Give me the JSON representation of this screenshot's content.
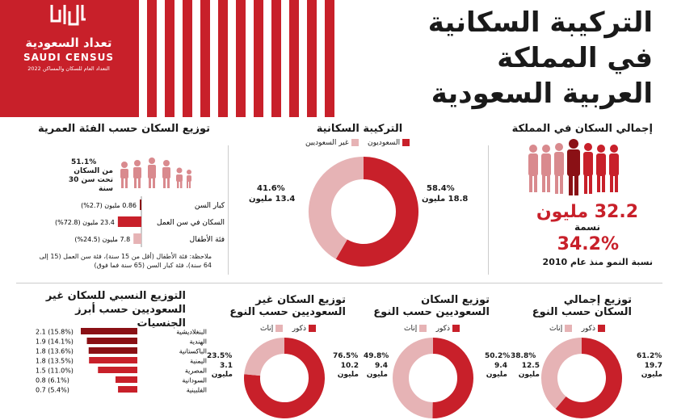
{
  "header": {
    "logo_ar": "تعداد السعودية",
    "logo_en": "SAUDI CENSUS",
    "logo_sub": "التعداد العام للسكان والمساكن 2022",
    "title_lines": [
      "التركيبة السكانية",
      "في المملكة",
      "العربية السعودية"
    ]
  },
  "total": {
    "title": "إجمالي السكان في المملكة",
    "population_value": "32.2 مليون",
    "population_label": "نسمة",
    "growth_value": "34.2%",
    "growth_label": "نسبة النمو منذ عام 2010"
  },
  "composition": {
    "title": "التركيبة السكانية",
    "legend": [
      "السعوديون",
      "غير السعوديين"
    ],
    "saudi_pct": "58.4%",
    "saudi_abs": "18.8 مليون",
    "non_saudi_pct": "41.6%",
    "non_saudi_abs": "13.4 مليون"
  },
  "age": {
    "title": "توزيع السكان حسب الفئة العمرية",
    "under30_pct": "51.1%",
    "under30_label": "من السكان تحت سن 30 سنة",
    "note": "ملاحظة: فئة الأطفال (أقل من 15 سنة)، فئة سن العمل (15 إلى 64 سنة)، فئة كبار السن (65 سنة فما فوق)"
  },
  "gender_total": {
    "title": "توزيع إجمالي السكان حسب النوع",
    "legend": [
      "ذكور",
      "إناث"
    ],
    "male_pct": "61.2%",
    "male_abs": "19.7 مليون",
    "female_pct": "38.8%",
    "female_abs": "12.5 مليون"
  },
  "gender_saudi": {
    "title": "توزيع السكان السعوديين حسب النوع",
    "legend": [
      "ذكور",
      "إناث"
    ],
    "male_pct": "50.2%",
    "male_abs": "9.4 مليون",
    "female_pct": "49.8%",
    "female_abs": "9.4 مليون"
  },
  "gender_non_saudi": {
    "title": "توزيع السكان غير السعوديين حسب النوع",
    "legend": [
      "ذكور",
      "إناث"
    ],
    "male_pct": "76.5%",
    "male_abs": "10.2 مليون",
    "female_pct": "23.5%",
    "female_abs": "3.1 مليون"
  },
  "nationalities": {
    "title": "التوزيع النسبي للسكان غير السعوديين حسب أبرز الجنسيات"
  },
  "chart_data": [
    {
      "type": "pie",
      "title": "التركيبة السكانية",
      "categories": [
        "السعوديون",
        "غير السعوديين"
      ],
      "values": [
        58.4,
        41.6
      ],
      "absolute_millions": [
        18.8,
        13.4
      ],
      "colors": [
        "#c8202a",
        "#e6b3b5"
      ]
    },
    {
      "type": "bar",
      "title": "توزيع السكان حسب الفئة العمرية",
      "categories": [
        "كبار السن",
        "السكان في سن العمل",
        "فئة الأطفال"
      ],
      "values": [
        2.7,
        72.8,
        24.5
      ],
      "absolute_millions": [
        0.86,
        23.4,
        7.8
      ],
      "value_labels": [
        "0.86 مليون (2.7%)",
        "23.4 مليون (72.8%)",
        "7.8 مليون (24.5%)"
      ]
    },
    {
      "type": "pie",
      "title": "توزيع إجمالي السكان حسب النوع",
      "categories": [
        "ذكور",
        "إناث"
      ],
      "values": [
        61.2,
        38.8
      ],
      "absolute_millions": [
        19.7,
        12.5
      ]
    },
    {
      "type": "pie",
      "title": "توزيع السكان السعوديين حسب النوع",
      "categories": [
        "ذكور",
        "إناث"
      ],
      "values": [
        50.2,
        49.8
      ],
      "absolute_millions": [
        9.4,
        9.4
      ]
    },
    {
      "type": "pie",
      "title": "توزيع السكان غير السعوديين حسب النوع",
      "categories": [
        "ذكور",
        "إناث"
      ],
      "values": [
        76.5,
        23.5
      ],
      "absolute_millions": [
        10.2,
        3.1
      ]
    },
    {
      "type": "bar",
      "title": "التوزيع النسبي للسكان غير السعوديين حسب أبرز الجنسيات",
      "categories": [
        "البنغلاديشية",
        "الهندية",
        "الباكستانية",
        "اليمنية",
        "المصرية",
        "السودانية",
        "الفلبينية"
      ],
      "values": [
        15.8,
        14.1,
        13.6,
        13.5,
        11.0,
        6.1,
        5.4
      ],
      "absolute_millions": [
        2.1,
        1.9,
        1.8,
        1.8,
        1.5,
        0.8,
        0.7
      ],
      "value_labels": [
        "2.1 (15.8%)",
        "1.9 (14.1%)",
        "1.8 (13.6%)",
        "1.8 (13.5%)",
        "1.5 (11.0%)",
        "0.8 (6.1%)",
        "0.7 (5.4%)"
      ]
    }
  ]
}
